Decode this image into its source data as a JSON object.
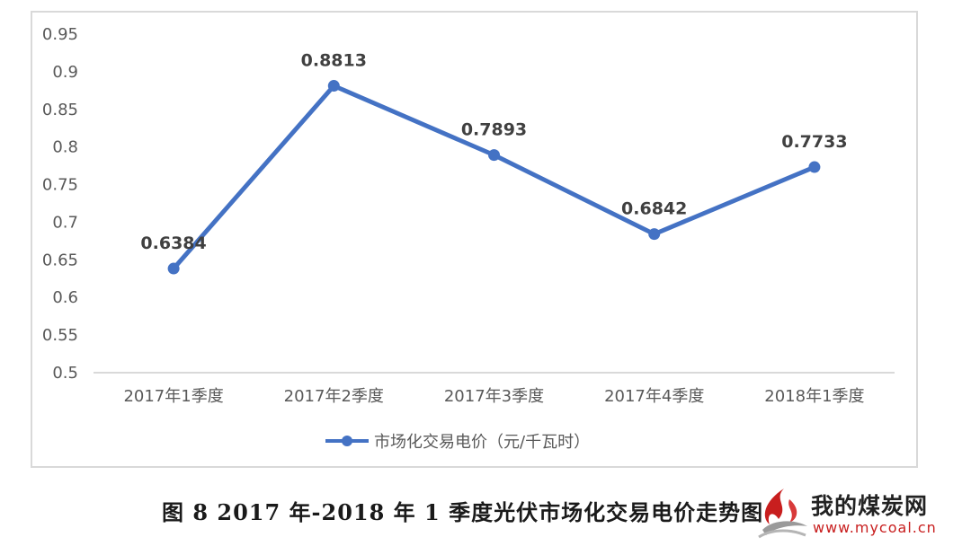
{
  "chart_data": {
    "type": "line",
    "categories": [
      "2017年1季度",
      "2017年2季度",
      "2017年3季度",
      "2017年4季度",
      "2018年1季度"
    ],
    "series": [
      {
        "name": "市场化交易电价（元/千瓦时）",
        "values": [
          0.6384,
          0.8813,
          0.7893,
          0.6842,
          0.7733
        ],
        "color": "#4472c4"
      }
    ],
    "data_labels": [
      "0.6384",
      "0.8813",
      "0.7893",
      "0.6842",
      "0.7733"
    ],
    "ylim": [
      0.5,
      0.95
    ],
    "yticks": [
      "0.95",
      "0.9",
      "0.85",
      "0.8",
      "0.75",
      "0.7",
      "0.65",
      "0.6",
      "0.55",
      "0.5"
    ],
    "grid": false,
    "legend_position": "bottom",
    "title": "",
    "xlabel": "",
    "ylabel": ""
  },
  "caption": "图 8  2017 年-2018 年 1 季度光伏市场化交易电价走势图",
  "watermark": {
    "name": "我的煤炭网",
    "url": "www.mycoal.cn"
  },
  "colors": {
    "series": "#4472c4",
    "frame": "#d9d9d9",
    "axis": "#d9d9d9",
    "watermark_red": "#c81e1e"
  },
  "icons": {
    "watermark_logo": "flame-logo-icon"
  }
}
